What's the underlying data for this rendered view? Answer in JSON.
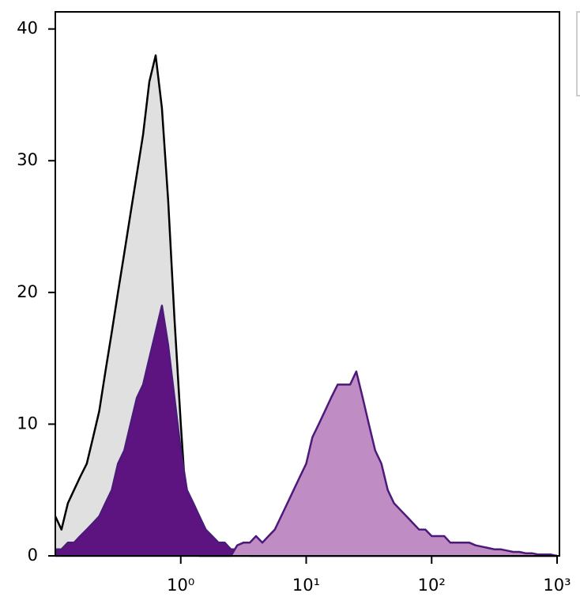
{
  "chart_data": {
    "type": "histogram-overlay",
    "x": [
      0.1,
      0.112,
      0.126,
      0.141,
      0.158,
      0.178,
      0.2,
      0.224,
      0.251,
      0.282,
      0.316,
      0.355,
      0.398,
      0.447,
      0.501,
      0.562,
      0.631,
      0.708,
      0.794,
      0.891,
      1,
      1.12,
      1.26,
      1.41,
      1.58,
      1.78,
      2,
      2.24,
      2.51,
      2.82,
      3.16,
      3.55,
      3.98,
      4.47,
      5.01,
      5.62,
      6.31,
      7.08,
      7.94,
      8.91,
      10,
      11.2,
      12.6,
      14.1,
      15.8,
      17.8,
      20,
      22.4,
      25.1,
      28.2,
      31.6,
      35.5,
      39.8,
      44.7,
      50.1,
      56.2,
      63.1,
      70.8,
      79.4,
      89.1,
      100,
      112,
      126,
      141,
      158,
      178,
      200,
      224,
      251,
      282,
      316,
      355,
      398,
      447,
      501,
      562,
      631,
      708,
      794,
      891,
      1000
    ],
    "series": [
      {
        "color": "#000000",
        "fill": "#e0e0e0",
        "values": [
          3,
          2,
          4,
          5,
          6,
          7,
          9,
          11,
          14,
          17,
          20,
          23,
          26,
          29,
          32,
          36,
          38,
          34,
          27,
          18,
          10,
          3,
          0.5,
          0,
          0,
          0,
          0,
          0,
          0,
          0,
          0,
          0,
          0,
          0,
          0,
          0,
          0,
          0,
          0,
          0,
          0,
          0,
          0,
          0,
          0,
          0,
          0,
          0,
          0,
          0,
          0,
          0,
          0,
          0,
          0,
          0,
          0,
          0,
          0,
          0,
          0,
          0,
          0,
          0,
          0,
          0,
          0,
          0,
          0,
          0,
          0,
          0,
          0,
          0,
          0,
          0,
          0,
          0,
          0,
          0,
          0
        ]
      },
      {
        "color": "#4b1a7a",
        "fill": "#5e1480",
        "values": [
          0.5,
          0.5,
          1,
          1,
          1.5,
          2,
          2.5,
          3,
          4,
          5,
          7,
          8,
          10,
          12,
          13,
          15,
          17,
          19,
          16,
          12,
          8,
          5,
          4,
          3,
          2,
          1.5,
          1,
          1,
          0.5,
          0.5,
          1,
          0,
          0,
          0,
          0,
          0,
          0,
          0,
          0,
          0,
          0,
          0,
          0,
          0,
          0,
          0,
          0,
          0,
          0,
          0,
          0,
          0,
          0,
          0,
          0,
          0,
          0,
          0,
          0,
          0,
          0,
          0,
          0,
          0,
          0,
          0,
          0,
          0,
          0,
          0,
          0,
          0,
          0,
          0,
          0,
          0,
          0,
          0,
          0,
          0,
          0
        ]
      },
      {
        "color": "#4b1a7a",
        "fill": "#c08cc4",
        "values": [
          0,
          0,
          0,
          0,
          0,
          0,
          0,
          0,
          0,
          0,
          0,
          0,
          0,
          0,
          0,
          0,
          0,
          0,
          0,
          0,
          0,
          0,
          0,
          0,
          0,
          0,
          0,
          0,
          0,
          0.8,
          1,
          1,
          1.5,
          1,
          1.5,
          2,
          3,
          4,
          5,
          6,
          7,
          9,
          10,
          11,
          12,
          13,
          13,
          13,
          14,
          12,
          10,
          8,
          7,
          5,
          4,
          3.5,
          3,
          2.5,
          2,
          2,
          1.5,
          1.5,
          1.5,
          1,
          1,
          1,
          1,
          0.8,
          0.7,
          0.6,
          0.5,
          0.5,
          0.4,
          0.3,
          0.3,
          0.2,
          0.2,
          0.1,
          0.1,
          0.1,
          0
        ]
      }
    ],
    "xlim": [
      0.1,
      1000
    ],
    "log_x": true,
    "xticks": [
      {
        "value": 1,
        "label": "10⁰"
      },
      {
        "value": 10,
        "label": "10¹"
      },
      {
        "value": 100,
        "label": "10²"
      },
      {
        "value": 1000,
        "label": "10³"
      }
    ],
    "ylim": [
      0,
      41.3
    ],
    "yticks": [
      0,
      10,
      20,
      30,
      40
    ]
  }
}
